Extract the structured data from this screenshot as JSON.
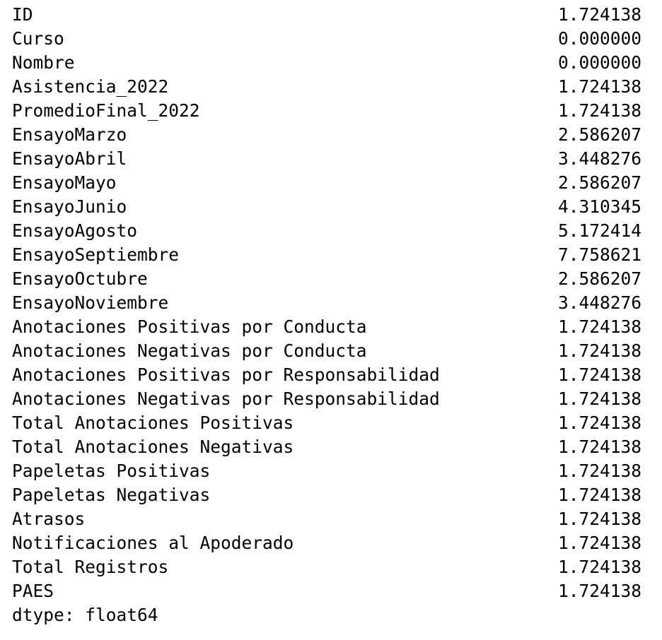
{
  "series": {
    "rows": [
      {
        "label": "ID",
        "value": "1.724138"
      },
      {
        "label": "Curso",
        "value": "0.000000"
      },
      {
        "label": "Nombre",
        "value": "0.000000"
      },
      {
        "label": "Asistencia_2022",
        "value": "1.724138"
      },
      {
        "label": "PromedioFinal_2022",
        "value": "1.724138"
      },
      {
        "label": "EnsayoMarzo",
        "value": "2.586207"
      },
      {
        "label": "EnsayoAbril",
        "value": "3.448276"
      },
      {
        "label": "EnsayoMayo",
        "value": "2.586207"
      },
      {
        "label": "EnsayoJunio",
        "value": "4.310345"
      },
      {
        "label": "EnsayoAgosto",
        "value": "5.172414"
      },
      {
        "label": "EnsayoSeptiembre",
        "value": "7.758621"
      },
      {
        "label": "EnsayoOctubre",
        "value": "2.586207"
      },
      {
        "label": "EnsayoNoviembre",
        "value": "3.448276"
      },
      {
        "label": "Anotaciones Positivas por Conducta",
        "value": "1.724138"
      },
      {
        "label": "Anotaciones Negativas por Conducta",
        "value": "1.724138"
      },
      {
        "label": "Anotaciones Positivas por Responsabilidad",
        "value": "1.724138"
      },
      {
        "label": "Anotaciones Negativas por Responsabilidad",
        "value": "1.724138"
      },
      {
        "label": "Total Anotaciones Positivas",
        "value": "1.724138"
      },
      {
        "label": "Total Anotaciones Negativas",
        "value": "1.724138"
      },
      {
        "label": "Papeletas Positivas",
        "value": "1.724138"
      },
      {
        "label": "Papeletas Negativas",
        "value": "1.724138"
      },
      {
        "label": "Atrasos",
        "value": "1.724138"
      },
      {
        "label": "Notificaciones al Apoderado",
        "value": "1.724138"
      },
      {
        "label": "Total Registros",
        "value": "1.724138"
      },
      {
        "label": "PAES",
        "value": "1.724138"
      }
    ],
    "dtype": "dtype: float64"
  }
}
